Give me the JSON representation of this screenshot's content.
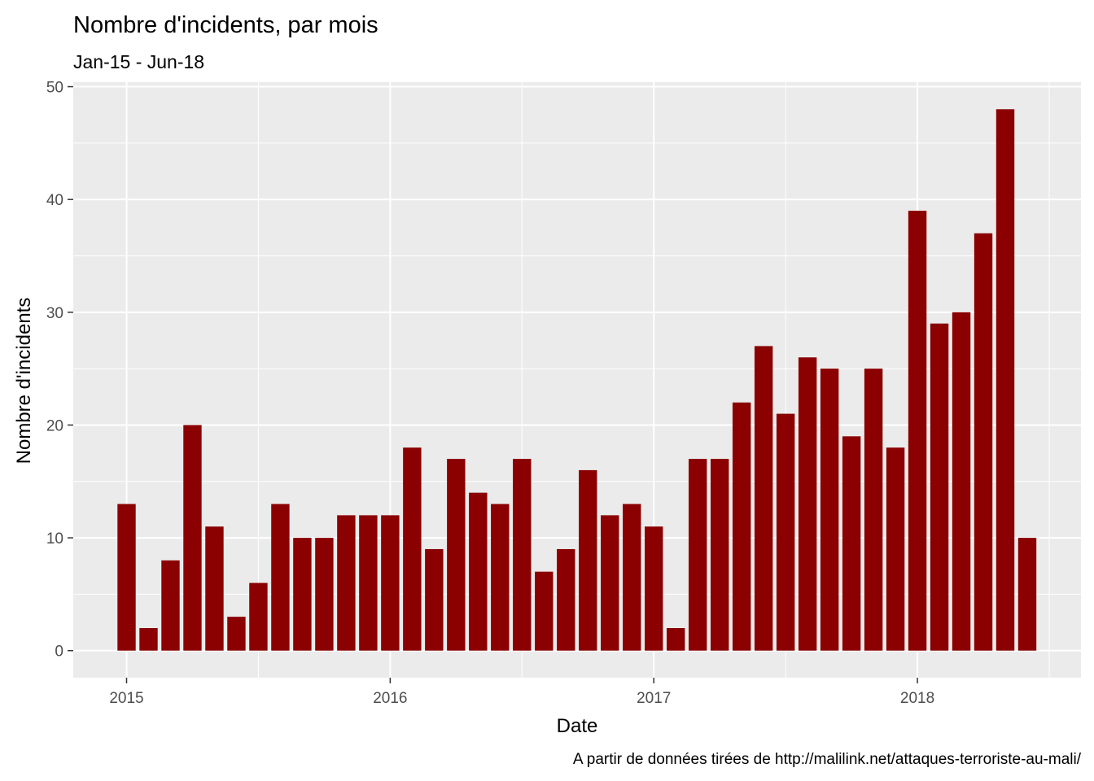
{
  "chart_data": {
    "type": "bar",
    "title": "Nombre d'incidents, par mois",
    "subtitle": "Jan-15 - Jun-18",
    "xlabel": "Date",
    "ylabel": "Nombre d'incidents",
    "caption": "A partir de données tirées de http://malilink.net/attaques-terroriste-au-mali/",
    "bar_color": "#8b0000",
    "panel_color": "#ebebeb",
    "grid_color": "#ffffff",
    "ylim": [
      -2.4,
      50.4
    ],
    "y_ticks": [
      0,
      10,
      20,
      30,
      40,
      50
    ],
    "x_ticks": [
      {
        "label": "2015",
        "index": 0
      },
      {
        "label": "2016",
        "index": 12
      },
      {
        "label": "2017",
        "index": 24
      },
      {
        "label": "2018",
        "index": 36
      }
    ],
    "categories": [
      "Jan-15",
      "Feb-15",
      "Mar-15",
      "Apr-15",
      "May-15",
      "Jun-15",
      "Jul-15",
      "Aug-15",
      "Sep-15",
      "Oct-15",
      "Nov-15",
      "Dec-15",
      "Jan-16",
      "Feb-16",
      "Mar-16",
      "Apr-16",
      "May-16",
      "Jun-16",
      "Jul-16",
      "Aug-16",
      "Sep-16",
      "Oct-16",
      "Nov-16",
      "Dec-16",
      "Jan-17",
      "Feb-17",
      "Mar-17",
      "Apr-17",
      "May-17",
      "Jun-17",
      "Jul-17",
      "Aug-17",
      "Sep-17",
      "Oct-17",
      "Nov-17",
      "Dec-17",
      "Jan-18",
      "Feb-18",
      "Mar-18",
      "Apr-18",
      "May-18",
      "Jun-18"
    ],
    "values": [
      13,
      2,
      8,
      20,
      11,
      3,
      6,
      13,
      10,
      10,
      12,
      12,
      12,
      18,
      9,
      17,
      14,
      13,
      17,
      7,
      9,
      16,
      12,
      13,
      11,
      2,
      17,
      17,
      22,
      27,
      21,
      26,
      25,
      19,
      25,
      18,
      39,
      29,
      30,
      37,
      48,
      10
    ]
  }
}
